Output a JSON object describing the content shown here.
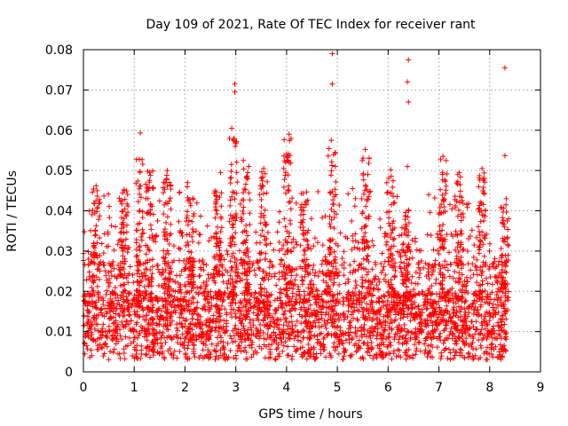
{
  "chart_data": {
    "type": "scatter",
    "title": "Day 109 of 2021, Rate Of TEC Index for receiver rant",
    "xlabel": "GPS time / hours",
    "ylabel": "ROTI / TECUs",
    "xlim": [
      0,
      9
    ],
    "ylim": [
      0,
      0.08
    ],
    "x_ticks": [
      "0",
      "1",
      "2",
      "3",
      "4",
      "5",
      "6",
      "7",
      "8",
      "9"
    ],
    "y_ticks": [
      "0",
      "0.01",
      "0.02",
      "0.03",
      "0.04",
      "0.05",
      "0.06",
      "0.07",
      "0.08"
    ],
    "grid": true,
    "marker": "plus",
    "color": "#ff0000",
    "x_range_of_data": [
      0,
      8.33
    ],
    "notable_points": [
      {
        "x": 4.9,
        "y": 0.079
      },
      {
        "x": 4.9,
        "y": 0.0715
      },
      {
        "x": 6.4,
        "y": 0.0775
      },
      {
        "x": 6.38,
        "y": 0.072
      },
      {
        "x": 6.4,
        "y": 0.067
      },
      {
        "x": 8.3,
        "y": 0.0755
      },
      {
        "x": 2.98,
        "y": 0.0715
      },
      {
        "x": 2.98,
        "y": 0.0695
      },
      {
        "x": 2.92,
        "y": 0.0605
      },
      {
        "x": 1.12,
        "y": 0.0593
      },
      {
        "x": 4.05,
        "y": 0.059
      },
      {
        "x": 2.97,
        "y": 0.058
      },
      {
        "x": 4.88,
        "y": 0.0575
      },
      {
        "x": 5.55,
        "y": 0.0552
      },
      {
        "x": 7.08,
        "y": 0.0535
      },
      {
        "x": 8.3,
        "y": 0.0537
      },
      {
        "x": 6.38,
        "y": 0.051
      },
      {
        "x": 6.05,
        "y": 0.0502
      },
      {
        "x": 7.4,
        "y": 0.0495
      },
      {
        "x": 7.85,
        "y": 0.0505
      },
      {
        "x": 0.25,
        "y": 0.0462
      },
      {
        "x": 0.8,
        "y": 0.0452
      },
      {
        "x": 1.65,
        "y": 0.05
      },
      {
        "x": 2.05,
        "y": 0.047
      },
      {
        "x": 2.7,
        "y": 0.0495
      },
      {
        "x": 3.15,
        "y": 0.0525
      },
      {
        "x": 3.55,
        "y": 0.0505
      },
      {
        "x": 4.0,
        "y": 0.0535
      },
      {
        "x": 5.3,
        "y": 0.0455
      },
      {
        "x": 0.02,
        "y": 0.0348
      },
      {
        "x": 8.32,
        "y": 0.0415
      },
      {
        "x": 6.4,
        "y": 0.0402
      },
      {
        "x": 7.05,
        "y": 0.0395
      }
    ]
  }
}
